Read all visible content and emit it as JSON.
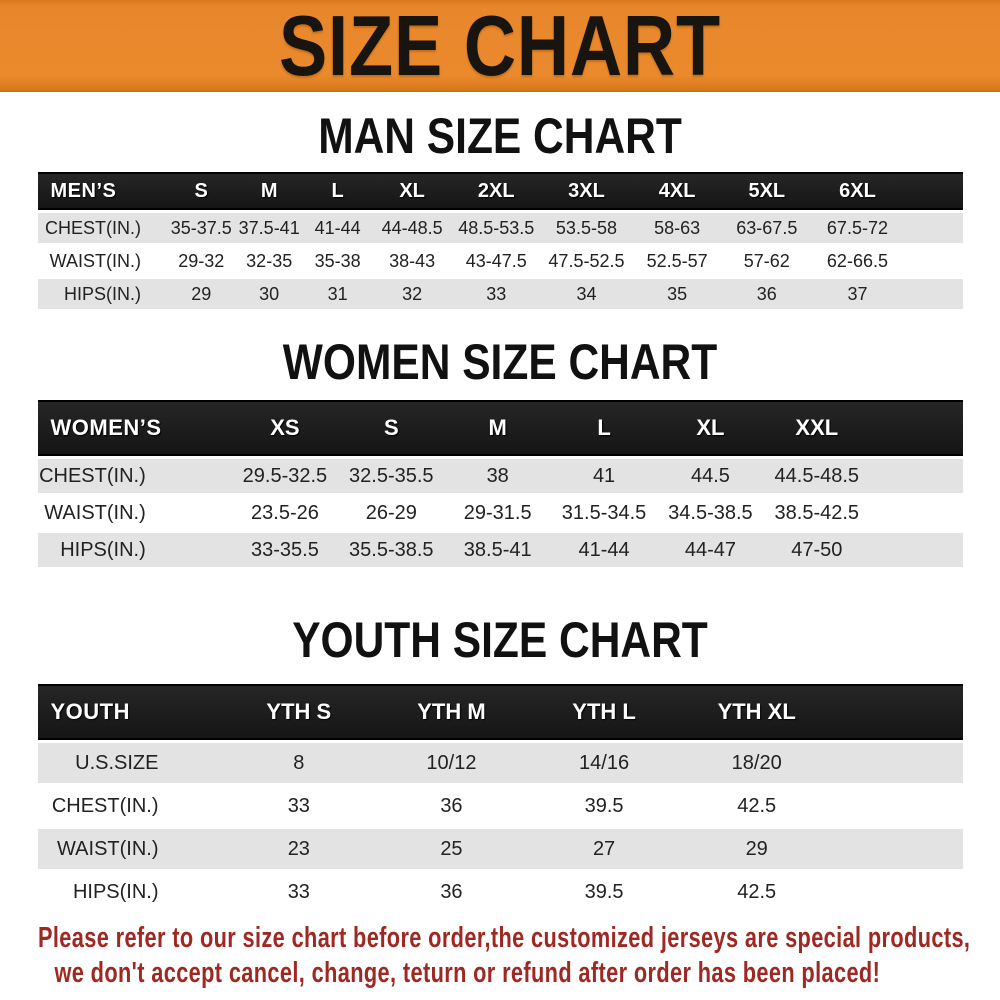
{
  "banner": {
    "title": "SIZE CHART"
  },
  "sections": [
    {
      "heading": "MAN SIZE CHART",
      "table": {
        "label": "MEN’S",
        "columns": [
          "S",
          "M",
          "L",
          "XL",
          "2XL",
          "3XL",
          "4XL",
          "5XL",
          "6XL"
        ],
        "col_widths": [
          "14%",
          "7.4%",
          "7.3%",
          "7.5%",
          "8.6%",
          "9.6%",
          "9.9%",
          "9.7%",
          "9.7%",
          "9.9%",
          "6.4%"
        ],
        "rows": [
          {
            "label": "CHEST(IN.)",
            "values": [
              "35-37.5",
              "37.5-41",
              "41-44",
              "44-48.5",
              "48.5-53.5",
              "53.5-58",
              "58-63",
              "63-67.5",
              "67.5-72"
            ]
          },
          {
            "label": "WAIST(IN.)",
            "values": [
              "29-32",
              "32-35",
              "35-38",
              "38-43",
              "43-47.5",
              "47.5-52.5",
              "52.5-57",
              "57-62",
              "62-66.5"
            ]
          },
          {
            "label": "HIPS(IN.)",
            "values": [
              "29",
              "30",
              "31",
              "32",
              "33",
              "34",
              "35",
              "36",
              "37"
            ]
          }
        ]
      }
    },
    {
      "heading": "WOMEN SIZE CHART",
      "table": {
        "label": "WOMEN’S",
        "columns": [
          "XS",
          "S",
          "M",
          "L",
          "XL",
          "XXL"
        ],
        "col_widths": [
          "21%",
          "11.5%",
          "11.5%",
          "11.5%",
          "11.5%",
          "11.5%",
          "11.5%",
          "10%"
        ],
        "rows": [
          {
            "label": "CHEST(IN.)",
            "values": [
              "29.5-32.5",
              "32.5-35.5",
              "38",
              "41",
              "44.5",
              "44.5-48.5"
            ]
          },
          {
            "label": "WAIST(IN.)",
            "values": [
              "23.5-26",
              "26-29",
              "29-31.5",
              "31.5-34.5",
              "34.5-38.5",
              "38.5-42.5"
            ]
          },
          {
            "label": "HIPS(IN.)",
            "values": [
              "33-35.5",
              "35.5-38.5",
              "38.5-41",
              "41-44",
              "44-47",
              "47-50"
            ]
          }
        ]
      }
    },
    {
      "heading": "YOUTH SIZE CHART",
      "table": {
        "label": "YOUTH",
        "columns": [
          "YTH S",
          "YTH M",
          "YTH L",
          "YTH XL"
        ],
        "col_widths": [
          "20%",
          "16.5%",
          "16.5%",
          "16.5%",
          "16.5%",
          "14%"
        ],
        "rows": [
          {
            "label": "U.S.SIZE",
            "values": [
              "8",
              "10/12",
              "14/16",
              "18/20"
            ]
          },
          {
            "label": "CHEST(IN.)",
            "values": [
              "33",
              "36",
              "39.5",
              "42.5"
            ]
          },
          {
            "label": "WAIST(IN.)",
            "values": [
              "23",
              "25",
              "27",
              "29"
            ]
          },
          {
            "label": "HIPS(IN.)",
            "values": [
              "33",
              "36",
              "39.5",
              "42.5"
            ]
          }
        ]
      }
    }
  ],
  "footer": {
    "line1": "Please refer to our size chart before order,the customized jerseys are special products,",
    "line2": "we don't accept cancel, change, teturn or refund after order has been placed!"
  },
  "colors": {
    "banner_orange": "#E8862B",
    "header_bar_black": "#1C1C1C",
    "row_stripe_gray": "#E3E3E3",
    "footer_red": "#9E2823"
  }
}
